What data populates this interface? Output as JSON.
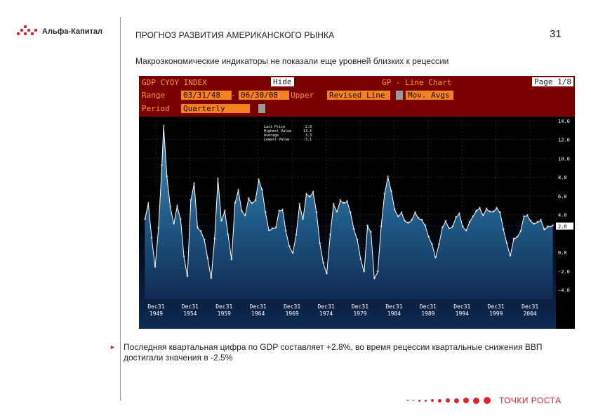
{
  "header": {
    "logo_text": "Альфа-Капитал",
    "title": "ПРОГНОЗ РАЗВИТИЯ АМЕРИКАНСКОГО РЫНКА",
    "page_number": "31",
    "subtitle": "Макроэкономические индикаторы не показали еще уровней близких к рецессии"
  },
  "terminal": {
    "ticker": "GDP CYOY INDEX",
    "hide_button": "Hide",
    "screen_title": "GP - Line Chart",
    "page": "Page 1/8",
    "range_label": "Range",
    "range_from": "03/31/48",
    "range_to": "06/30/08",
    "upper_label": "Upper",
    "revised_line": "Revised Line",
    "mov_avgs": "Mov. Avgs",
    "period_label": "Period",
    "period_value": "Quarterly",
    "colors": {
      "header_bg": "#7a0000",
      "field_orange": "#f58220",
      "area_top": "#3a7fa6",
      "area_bottom": "#0f2a52"
    }
  },
  "chart_data": {
    "type": "area",
    "title": "",
    "xlabel": "",
    "ylabel": "",
    "ylim": [
      -5,
      14
    ],
    "grid": true,
    "y_ticks": [
      "14.0",
      "12.0",
      "10.0",
      "8.0",
      "6.0",
      "4.0",
      "2.8",
      "0.0",
      "-2.0",
      "-4.0"
    ],
    "y_tick_values": [
      14,
      12,
      10,
      8,
      6,
      4,
      2.8,
      0,
      -2,
      -4
    ],
    "x_ticks": [
      {
        "label": "Dec31",
        "year": "1949",
        "x": 1949.9
      },
      {
        "label": "Dec31",
        "year": "1954",
        "x": 1954.9
      },
      {
        "label": "Dec31",
        "year": "1959",
        "x": 1959.9
      },
      {
        "label": "Dec31",
        "year": "1964",
        "x": 1964.9
      },
      {
        "label": "Dec31",
        "year": "1969",
        "x": 1969.9
      },
      {
        "label": "Dec31",
        "year": "1974",
        "x": 1974.9
      },
      {
        "label": "Dec31",
        "year": "1979",
        "x": 1979.9
      },
      {
        "label": "Dec31",
        "year": "1984",
        "x": 1984.9
      },
      {
        "label": "Dec31",
        "year": "1989",
        "x": 1989.9
      },
      {
        "label": "Dec31",
        "year": "1994",
        "x": 1994.9
      },
      {
        "label": "Dec31",
        "year": "1999",
        "x": 1999.9
      },
      {
        "label": "Dec31",
        "year": "2004",
        "x": 2004.9
      }
    ],
    "xlim": [
      1948.0,
      2008.5
    ],
    "last_value_label": "2.8",
    "legend": [
      {
        "label": "Last Price",
        "value": "2.8"
      },
      {
        "label": "Highest Value",
        "value": "13.4"
      },
      {
        "label": "Average",
        "value": "3.3"
      },
      {
        "label": "Lowest Value",
        "value": "-3.1"
      }
    ],
    "series": [
      {
        "x": [
          1948.25,
          1948.75,
          1949.25,
          1949.75,
          1950.25,
          1950.75,
          1951.0,
          1951.5,
          1952.0,
          1952.5,
          1953.0,
          1953.5,
          1954.0,
          1954.5,
          1955.0,
          1955.5,
          1956.0,
          1956.5,
          1957.0,
          1957.5,
          1958.0,
          1958.5,
          1959.0,
          1959.5,
          1960.0,
          1960.5,
          1961.0,
          1961.5,
          1962.0,
          1962.5,
          1963.0,
          1963.5,
          1964.0,
          1964.5,
          1965.0,
          1965.5,
          1966.0,
          1966.5,
          1967.0,
          1967.5,
          1968.0,
          1968.5,
          1969.0,
          1969.5,
          1970.0,
          1970.5,
          1971.0,
          1971.5,
          1972.0,
          1972.5,
          1973.0,
          1973.5,
          1974.0,
          1974.5,
          1975.0,
          1975.5,
          1976.0,
          1976.5,
          1977.0,
          1977.5,
          1978.0,
          1978.5,
          1979.0,
          1979.5,
          1980.0,
          1980.5,
          1981.0,
          1981.5,
          1982.0,
          1982.5,
          1983.0,
          1983.5,
          1984.0,
          1984.5,
          1985.0,
          1985.5,
          1986.0,
          1986.5,
          1987.0,
          1987.5,
          1988.0,
          1988.5,
          1989.0,
          1989.5,
          1990.0,
          1990.5,
          1991.0,
          1991.5,
          1992.0,
          1992.5,
          1993.0,
          1993.5,
          1994.0,
          1994.5,
          1995.0,
          1995.5,
          1996.0,
          1996.5,
          1997.0,
          1997.5,
          1998.0,
          1998.5,
          1999.0,
          1999.5,
          2000.0,
          2000.5,
          2001.0,
          2001.5,
          2002.0,
          2002.5,
          2003.0,
          2003.5,
          2004.0,
          2004.5,
          2005.0,
          2005.5,
          2006.0,
          2006.5,
          2007.0,
          2007.5,
          2008.25
        ],
        "y": [
          3.5,
          5.2,
          1.5,
          -1.6,
          2.5,
          9.2,
          13.4,
          8.0,
          4.8,
          3.0,
          4.9,
          3.5,
          -0.5,
          -2.6,
          5.5,
          7.3,
          2.6,
          2.2,
          1.3,
          -0.7,
          -2.8,
          1.4,
          7.8,
          3.3,
          4.4,
          1.8,
          -0.8,
          5.2,
          6.6,
          4.4,
          3.9,
          5.7,
          5.2,
          5.5,
          7.7,
          6.6,
          4.2,
          2.3,
          2.5,
          2.6,
          4.4,
          4.5,
          2.2,
          0.6,
          -0.1,
          1.8,
          5.1,
          3.5,
          6.2,
          5.9,
          6.4,
          4.2,
          0.9,
          -1.2,
          -2.3,
          1.8,
          5.1,
          4.3,
          5.5,
          5.2,
          5.4,
          4.2,
          2.4,
          1.3,
          -0.8,
          -2.1,
          2.8,
          2.1,
          -2.8,
          -2.1,
          2.7,
          6.2,
          8.0,
          6.5,
          4.5,
          3.8,
          4.2,
          3.3,
          3.1,
          3.4,
          4.2,
          3.6,
          3.4,
          2.8,
          1.6,
          0.8,
          -0.6,
          0.8,
          2.6,
          3.3,
          2.5,
          2.7,
          3.7,
          4.1,
          2.7,
          2.3,
          3.2,
          3.8,
          4.4,
          4.7,
          3.9,
          4.6,
          4.3,
          4.3,
          4.7,
          4.2,
          2.4,
          0.9,
          -0.4,
          1.4,
          1.6,
          2.2,
          3.8,
          3.9,
          3.3,
          3.0,
          3.2,
          3.4,
          2.4,
          2.7,
          2.8
        ]
      }
    ]
  },
  "note": {
    "text": "Последняя квартальная цифра по GDP составляет +2.8%, во время рецессии квартальные снижения ВВП достигали значения в -2.5%"
  },
  "footer": {
    "text": "ТОЧКИ РОСТА"
  }
}
